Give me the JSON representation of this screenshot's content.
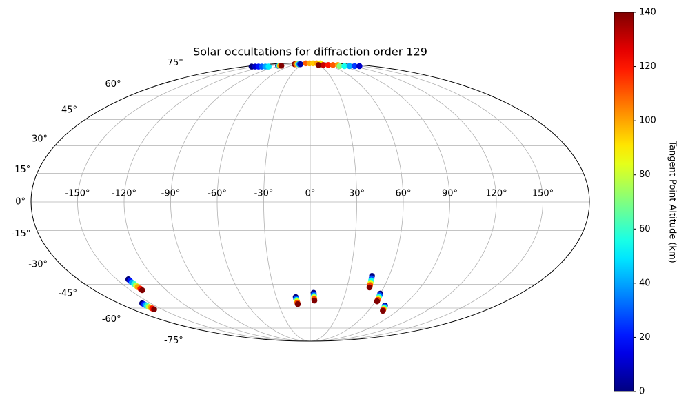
{
  "chart_data": {
    "type": "scatter",
    "projection": "mollweide",
    "title": "Solar occultations for diffraction order 129",
    "xticks": [
      {
        "value": -150,
        "label": "-150°"
      },
      {
        "value": -120,
        "label": "-120°"
      },
      {
        "value": -90,
        "label": "-90°"
      },
      {
        "value": -60,
        "label": "-60°"
      },
      {
        "value": -30,
        "label": "-30°"
      },
      {
        "value": 0,
        "label": "0°"
      },
      {
        "value": 30,
        "label": "30°"
      },
      {
        "value": 60,
        "label": "60°"
      },
      {
        "value": 90,
        "label": "90°"
      },
      {
        "value": 120,
        "label": "120°"
      },
      {
        "value": 150,
        "label": "150°"
      }
    ],
    "yticks": [
      {
        "value": -75,
        "label": "-75°"
      },
      {
        "value": -60,
        "label": "-60°"
      },
      {
        "value": -45,
        "label": "-45°"
      },
      {
        "value": -30,
        "label": "-30°"
      },
      {
        "value": -15,
        "label": "-15°"
      },
      {
        "value": 0,
        "label": "0°"
      },
      {
        "value": 15,
        "label": "15°"
      },
      {
        "value": 30,
        "label": "30°"
      },
      {
        "value": 45,
        "label": "45°"
      },
      {
        "value": 60,
        "label": "60°"
      },
      {
        "value": 75,
        "label": "75°"
      }
    ],
    "xlim": [
      -180,
      180
    ],
    "ylim": [
      -90,
      90
    ],
    "grid": true,
    "x": [
      -141,
      -141,
      -141,
      -140.5,
      -140.5,
      -140.5,
      -140,
      -140,
      -158,
      -158,
      -158,
      -158,
      -158,
      -158,
      -158,
      -158,
      -12.8,
      -12.6,
      -12.4,
      -12.2,
      -12,
      -11.8,
      2.9,
      3.1,
      3.3,
      3.4,
      3.6,
      3.8,
      47,
      47.3,
      47.6,
      47.8,
      48.1,
      48.4,
      60,
      60.3,
      60.6,
      60.9,
      61.2,
      61.5,
      72,
      72.6,
      73.2,
      73.8,
      74.4,
      75,
      -162,
      -152,
      -143,
      -134,
      -124,
      -115,
      -100,
      -97,
      -94,
      -90,
      -68,
      -61,
      -54,
      -48,
      -43,
      -30,
      -5,
      20,
      45,
      70,
      30,
      47,
      65,
      82,
      100,
      86,
      100,
      115,
      130,
      144
    ],
    "y": [
      -42,
      -42.9,
      -43.9,
      -44.8,
      -45.7,
      -46.6,
      -47.6,
      -48.5,
      -56.8,
      -57.4,
      -57.9,
      -58.5,
      -59.1,
      -59.7,
      -60.2,
      -60.8,
      -52.8,
      -53.7,
      -54.6,
      -55.5,
      -56.4,
      -57.3,
      -50.1,
      -51.1,
      -52.1,
      -53,
      -54,
      -55,
      -40,
      -41.4,
      -42.7,
      -44.1,
      -45.4,
      -46.8,
      -50.6,
      -51.6,
      -52.6,
      -53.5,
      -54.5,
      -55.5,
      -58.2,
      -58.9,
      -59.6,
      -60.4,
      -61.1,
      -61.8,
      84,
      84,
      84,
      84,
      84,
      84,
      85,
      85,
      85,
      85,
      87,
      87,
      87,
      87,
      87,
      88.5,
      88.5,
      88.5,
      88.5,
      88.5,
      86,
      86,
      86,
      86,
      86,
      84.5,
      84.5,
      84.5,
      84.5,
      84.5
    ],
    "c": [
      0,
      20,
      40,
      60,
      80,
      100,
      120,
      140,
      0,
      20,
      40,
      60,
      80,
      100,
      120,
      140,
      0,
      28,
      56,
      84,
      112,
      140,
      0,
      28,
      56,
      84,
      112,
      140,
      0,
      28,
      56,
      84,
      112,
      140,
      0,
      28,
      56,
      84,
      112,
      140,
      0,
      28,
      56,
      84,
      112,
      140,
      0,
      10,
      20,
      30,
      40,
      50,
      0,
      60,
      100,
      140,
      140,
      105,
      70,
      35,
      5,
      110,
      100,
      95,
      100,
      90,
      140,
      130,
      120,
      110,
      100,
      70,
      55,
      40,
      25,
      10
    ],
    "colormap": "jet",
    "colorbar": {
      "label": "Tangent Point Altitude (km)",
      "clim": [
        0,
        140
      ],
      "ticks": [
        0,
        20,
        40,
        60,
        80,
        100,
        120,
        140
      ]
    }
  }
}
